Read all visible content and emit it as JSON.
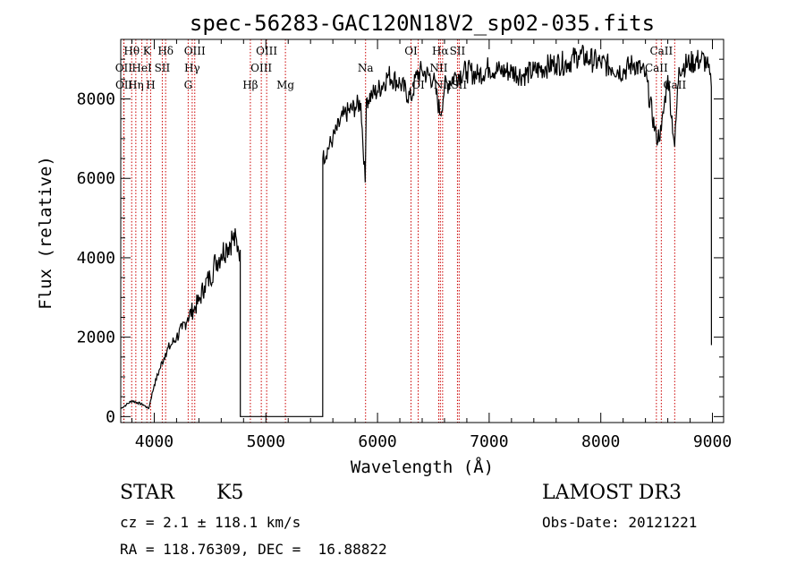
{
  "chart_data": {
    "type": "line",
    "title": "spec-56283-GAC120N18V2_sp02-035.fits",
    "xlabel": "Wavelength (Å)",
    "ylabel": "Flux (relative)",
    "xlim": [
      3700,
      9100
    ],
    "ylim": [
      -150,
      9500
    ],
    "xticks": [
      4000,
      5000,
      6000,
      7000,
      8000,
      9000
    ],
    "yticks": [
      0,
      2000,
      4000,
      6000,
      8000
    ],
    "xtick_labels": [
      "4000",
      "5000",
      "6000",
      "7000",
      "8000",
      "9000"
    ],
    "ytick_labels": [
      "0",
      "2000",
      "4000",
      "6000",
      "8000"
    ],
    "spectrum": {
      "x": [
        3700,
        3750,
        3800,
        3850,
        3900,
        3950,
        4000,
        4050,
        4100,
        4150,
        4200,
        4250,
        4300,
        4350,
        4400,
        4450,
        4500,
        4550,
        4600,
        4650,
        4700,
        4750,
        4770,
        4771,
        5509,
        5510,
        5600,
        5700,
        5800,
        5850,
        5890,
        5895,
        5900,
        5950,
        6000,
        6100,
        6200,
        6300,
        6350,
        6400,
        6500,
        6563,
        6600,
        6700,
        6800,
        6900,
        7000,
        7100,
        7200,
        7300,
        7400,
        7500,
        7600,
        7700,
        7800,
        7900,
        8000,
        8100,
        8200,
        8300,
        8400,
        8498,
        8542,
        8600,
        8662,
        8700,
        8800,
        8900,
        8950,
        8990,
        8991
      ],
      "y": [
        200,
        300,
        400,
        350,
        300,
        200,
        800,
        1200,
        1600,
        1800,
        2000,
        2200,
        2500,
        2700,
        2900,
        3300,
        3500,
        3900,
        4100,
        4300,
        4500,
        4300,
        4200,
        0,
        0,
        6500,
        7000,
        7600,
        7800,
        7900,
        5900,
        7000,
        8000,
        8100,
        8200,
        8600,
        8400,
        8000,
        8600,
        8700,
        8500,
        7600,
        8300,
        8600,
        8700,
        8600,
        8800,
        8700,
        8700,
        8600,
        8700,
        8800,
        8900,
        8900,
        9100,
        9000,
        8900,
        8800,
        8700,
        8900,
        8600,
        7000,
        7200,
        8600,
        6800,
        8800,
        8900,
        9000,
        8900,
        8300,
        1800
      ]
    },
    "lines": [
      {
        "name": "Hθ",
        "x": 3798,
        "row": 1
      },
      {
        "name": "OII",
        "x": 3727,
        "row": 2
      },
      {
        "name": "OII",
        "x": 3729,
        "row": 3
      },
      {
        "name": "Hη",
        "x": 3835,
        "row": 3
      },
      {
        "name": "HeI",
        "x": 3889,
        "row": 2
      },
      {
        "name": "K",
        "x": 3934,
        "row": 1
      },
      {
        "name": "H",
        "x": 3968,
        "row": 3
      },
      {
        "name": "Hδ",
        "x": 4102,
        "row": 1
      },
      {
        "name": "SII",
        "x": 4072,
        "row": 2
      },
      {
        "name": "OIII",
        "x": 4363,
        "row": 1
      },
      {
        "name": "Hγ",
        "x": 4340,
        "row": 2
      },
      {
        "name": "G",
        "x": 4304,
        "row": 3
      },
      {
        "name": "Hβ",
        "x": 4861,
        "row": 3
      },
      {
        "name": "OIII",
        "x": 4959,
        "row": 2
      },
      {
        "name": "OIII",
        "x": 5007,
        "row": 1
      },
      {
        "name": "Mg",
        "x": 5175,
        "row": 3
      },
      {
        "name": "Na",
        "x": 5893,
        "row": 2
      },
      {
        "name": "OI",
        "x": 6300,
        "row": 1
      },
      {
        "name": "OI",
        "x": 6364,
        "row": 3
      },
      {
        "name": "Hα",
        "x": 6563,
        "row": 1
      },
      {
        "name": "NII",
        "x": 6548,
        "row": 2
      },
      {
        "name": "NII",
        "x": 6583,
        "row": 3
      },
      {
        "name": "SII",
        "x": 6716,
        "row": 1
      },
      {
        "name": "SII",
        "x": 6731,
        "row": 3
      },
      {
        "name": "CaII",
        "x": 8498,
        "row": 2
      },
      {
        "name": "CaII",
        "x": 8542,
        "row": 1
      },
      {
        "name": "CaII",
        "x": 8662,
        "row": 3
      }
    ],
    "line_color": "#cc0000"
  },
  "info": {
    "class_label": "STAR",
    "subclass": "K5",
    "survey": "LAMOST DR3",
    "cz": "cz = 2.1 ± 118.1 km/s",
    "obs_date": "Obs-Date: 20121221",
    "coords": "RA = 118.76309, DEC =  16.88822"
  }
}
